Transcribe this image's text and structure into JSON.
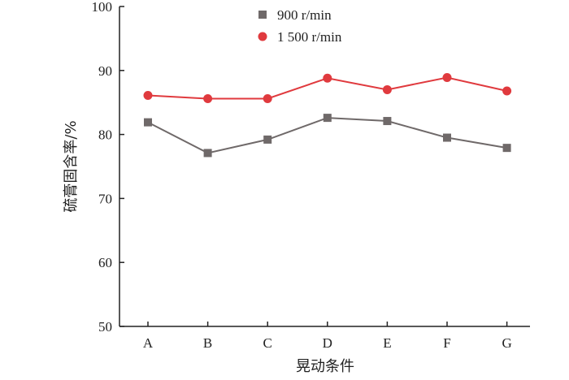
{
  "chart_data": {
    "type": "line",
    "categories": [
      "A",
      "B",
      "C",
      "D",
      "E",
      "F",
      "G"
    ],
    "series": [
      {
        "name": "900 r/min",
        "values": [
          81.9,
          77.1,
          79.2,
          82.6,
          82.1,
          79.5,
          77.9
        ],
        "color": "#6f6969",
        "marker": "square"
      },
      {
        "name": "1 500 r/min",
        "values": [
          86.1,
          85.6,
          85.6,
          88.8,
          87.0,
          88.9,
          86.8
        ],
        "color": "#e03a3e",
        "marker": "circle"
      }
    ],
    "xlabel": "晃动条件",
    "ylabel": "硫膏固含率/%",
    "ylim": [
      50,
      100
    ],
    "yticks": [
      50,
      60,
      70,
      80,
      90,
      100
    ],
    "grid": false,
    "legend_position": "top-center"
  }
}
